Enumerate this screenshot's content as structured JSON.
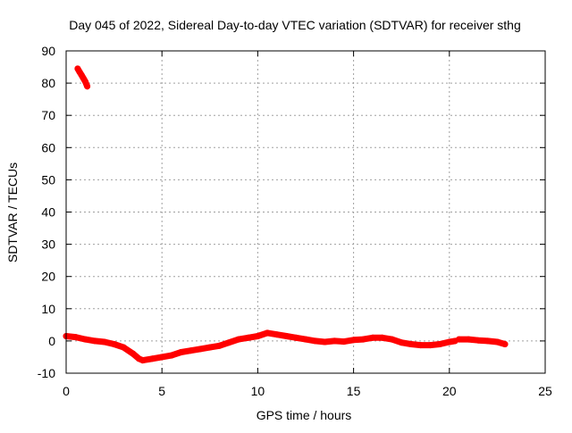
{
  "chart_data": {
    "type": "scatter",
    "title": "Day 045 of 2022, Sidereal Day-to-day VTEC variation (SDTVAR) for receiver sthg",
    "xlabel": "GPS time / hours",
    "ylabel": "SDTVAR / TECUs",
    "xlim": [
      0,
      25
    ],
    "ylim": [
      -10,
      90
    ],
    "xticks": [
      0,
      5,
      10,
      15,
      20,
      25
    ],
    "yticks": [
      -10,
      0,
      10,
      20,
      30,
      40,
      50,
      60,
      70,
      80,
      90
    ],
    "grid": true,
    "series": [
      {
        "name": "SDTVAR",
        "color": "#ff0000",
        "segments": [
          {
            "x": [
              0.6,
              0.7,
              0.8,
              0.9,
              1.0,
              1.1
            ],
            "y": [
              84.5,
              83.5,
              82.5,
              81.5,
              80.5,
              79.0
            ]
          },
          {
            "x": [
              0.0,
              0.5,
              1.0,
              1.5,
              2.0,
              2.5,
              3.0,
              3.5,
              3.8,
              4.0,
              4.5,
              5.0,
              5.5,
              6.0,
              6.5,
              7.0,
              7.5,
              8.0,
              8.5,
              9.0,
              9.5,
              10.0,
              10.5,
              11.0,
              11.5,
              12.0,
              12.5,
              13.0,
              13.5,
              14.0,
              14.5,
              15.0,
              15.5,
              16.0,
              16.5,
              17.0,
              17.5,
              18.0,
              18.5,
              19.0,
              19.5,
              20.0,
              20.3
            ],
            "y": [
              1.5,
              1.2,
              0.5,
              0.0,
              -0.3,
              -1.0,
              -2.0,
              -4.0,
              -5.5,
              -6.0,
              -5.5,
              -5.0,
              -4.5,
              -3.5,
              -3.0,
              -2.5,
              -2.0,
              -1.5,
              -0.5,
              0.5,
              1.0,
              1.5,
              2.5,
              2.0,
              1.5,
              1.0,
              0.5,
              0.0,
              -0.3,
              0.0,
              -0.2,
              0.3,
              0.5,
              1.0,
              1.0,
              0.5,
              -0.5,
              -1.0,
              -1.3,
              -1.3,
              -1.0,
              -0.3,
              0.0
            ]
          },
          {
            "x": [
              20.5,
              21.0,
              21.5,
              22.0,
              22.5,
              22.9
            ],
            "y": [
              0.5,
              0.5,
              0.2,
              0.0,
              -0.3,
              -1.0
            ]
          }
        ]
      }
    ]
  }
}
